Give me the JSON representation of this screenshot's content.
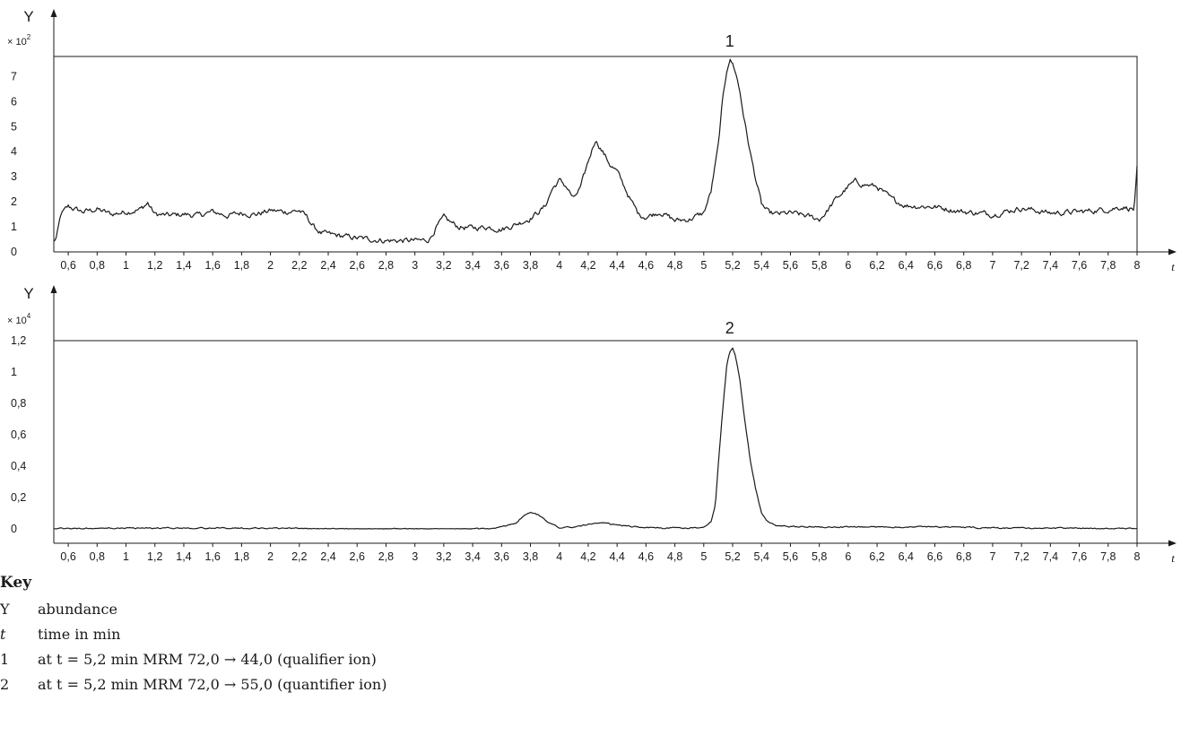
{
  "chart_data": [
    {
      "type": "line",
      "peak_label": "1",
      "ylabel": "Y",
      "xlabel": "t",
      "y_multiplier_base": "× 10",
      "y_multiplier_exp": "2",
      "ylim": [
        0,
        7.8
      ],
      "xlim": [
        0.5,
        8
      ],
      "yticks": [
        {
          "v": 0,
          "label": "0"
        },
        {
          "v": 1,
          "label": "1"
        },
        {
          "v": 2,
          "label": "2"
        },
        {
          "v": 3,
          "label": "3"
        },
        {
          "v": 4,
          "label": "4"
        },
        {
          "v": 5,
          "label": "5"
        },
        {
          "v": 6,
          "label": "6"
        },
        {
          "v": 7,
          "label": "7"
        }
      ],
      "series": [
        {
          "x": [
            0.5,
            0.52,
            0.55,
            0.6,
            0.7,
            0.8,
            0.9,
            1.0,
            1.1,
            1.15,
            1.2,
            1.3,
            1.4,
            1.5,
            1.6,
            1.7,
            1.8,
            1.9,
            2.0,
            2.1,
            2.2,
            2.25,
            2.3,
            2.35,
            2.4,
            2.6,
            2.8,
            2.9,
            3.0,
            3.05,
            3.1,
            3.15,
            3.2,
            3.3,
            3.4,
            3.5,
            3.6,
            3.7,
            3.8,
            3.9,
            3.95,
            4.0,
            4.05,
            4.1,
            4.15,
            4.2,
            4.25,
            4.3,
            4.35,
            4.4,
            4.45,
            4.5,
            4.55,
            4.6,
            4.7,
            4.8,
            4.9,
            5.0,
            5.05,
            5.1,
            5.13,
            5.16,
            5.18,
            5.2,
            5.22,
            5.25,
            5.28,
            5.32,
            5.36,
            5.4,
            5.45,
            5.5,
            5.6,
            5.7,
            5.8,
            5.85,
            5.9,
            6.0,
            6.05,
            6.1,
            6.2,
            6.3,
            6.4,
            6.6,
            6.8,
            7.0,
            7.2,
            7.4,
            7.6,
            7.8,
            7.9,
            7.98,
            8.0
          ],
          "y": [
            0.4,
            0.6,
            1.5,
            1.8,
            1.6,
            1.7,
            1.5,
            1.6,
            1.7,
            1.95,
            1.5,
            1.45,
            1.5,
            1.45,
            1.6,
            1.45,
            1.55,
            1.5,
            1.65,
            1.6,
            1.65,
            1.4,
            1.0,
            0.75,
            0.7,
            0.55,
            0.45,
            0.45,
            0.45,
            0.45,
            0.5,
            1.0,
            1.35,
            1.0,
            0.95,
            1.0,
            0.9,
            1.1,
            1.35,
            1.8,
            2.5,
            2.85,
            2.6,
            2.1,
            2.6,
            3.6,
            4.5,
            4.0,
            3.5,
            3.2,
            2.6,
            2.0,
            1.5,
            1.4,
            1.6,
            1.25,
            1.3,
            1.55,
            2.4,
            4.2,
            6.0,
            7.3,
            7.7,
            7.5,
            7.2,
            6.4,
            5.3,
            4.0,
            2.9,
            1.9,
            1.55,
            1.5,
            1.55,
            1.45,
            1.3,
            1.6,
            2.0,
            2.6,
            2.8,
            2.7,
            2.6,
            2.1,
            1.85,
            1.8,
            1.6,
            1.5,
            1.75,
            1.55,
            1.6,
            1.7,
            1.8,
            1.7,
            3.3
          ]
        }
      ]
    },
    {
      "type": "line",
      "peak_label": "2",
      "ylabel": "Y",
      "xlabel": "t",
      "y_multiplier_base": "× 10",
      "y_multiplier_exp": "4",
      "ylim": [
        0,
        1.2
      ],
      "xlim": [
        0.5,
        8
      ],
      "yticks": [
        {
          "v": 0,
          "label": "0"
        },
        {
          "v": 0.2,
          "label": "0,2"
        },
        {
          "v": 0.4,
          "label": "0,4"
        },
        {
          "v": 0.6,
          "label": "0,6"
        },
        {
          "v": 0.8,
          "label": "0,8"
        },
        {
          "v": 1.0,
          "label": "1"
        },
        {
          "v": 1.2,
          "label": "1,2"
        }
      ],
      "series": [
        {
          "x": [
            0.5,
            1.0,
            2.0,
            2.5,
            3.0,
            3.5,
            3.6,
            3.7,
            3.75,
            3.8,
            3.85,
            3.9,
            3.95,
            4.0,
            4.1,
            4.2,
            4.3,
            4.5,
            4.7,
            4.9,
            5.0,
            5.05,
            5.08,
            5.1,
            5.13,
            5.16,
            5.18,
            5.2,
            5.22,
            5.25,
            5.28,
            5.32,
            5.36,
            5.4,
            5.45,
            5.5,
            5.6,
            6.0,
            6.6,
            7.0,
            7.6,
            8.0
          ],
          "y": [
            0.0,
            0.005,
            0.005,
            0.0,
            0.0,
            0.0,
            0.01,
            0.04,
            0.08,
            0.105,
            0.09,
            0.06,
            0.03,
            0.01,
            0.01,
            0.03,
            0.035,
            0.015,
            0.005,
            0.005,
            0.01,
            0.05,
            0.15,
            0.4,
            0.75,
            1.05,
            1.13,
            1.15,
            1.1,
            0.95,
            0.72,
            0.45,
            0.25,
            0.1,
            0.04,
            0.02,
            0.015,
            0.01,
            0.015,
            0.005,
            0.005,
            0.0
          ]
        }
      ]
    }
  ],
  "x_ticks": [
    {
      "v": 0.6,
      "label": "0,6"
    },
    {
      "v": 0.8,
      "label": "0,8"
    },
    {
      "v": 1.0,
      "label": "1"
    },
    {
      "v": 1.2,
      "label": "1,2"
    },
    {
      "v": 1.4,
      "label": "1,4"
    },
    {
      "v": 1.6,
      "label": "1,6"
    },
    {
      "v": 1.8,
      "label": "1,8"
    },
    {
      "v": 2.0,
      "label": "2"
    },
    {
      "v": 2.2,
      "label": "2,2"
    },
    {
      "v": 2.4,
      "label": "2,4"
    },
    {
      "v": 2.6,
      "label": "2,6"
    },
    {
      "v": 2.8,
      "label": "2,8"
    },
    {
      "v": 3.0,
      "label": "3"
    },
    {
      "v": 3.2,
      "label": "3,2"
    },
    {
      "v": 3.4,
      "label": "3,4"
    },
    {
      "v": 3.6,
      "label": "3,6"
    },
    {
      "v": 3.8,
      "label": "3,8"
    },
    {
      "v": 4.0,
      "label": "4"
    },
    {
      "v": 4.2,
      "label": "4,2"
    },
    {
      "v": 4.4,
      "label": "4,4"
    },
    {
      "v": 4.6,
      "label": "4,6"
    },
    {
      "v": 4.8,
      "label": "4,8"
    },
    {
      "v": 5.0,
      "label": "5"
    },
    {
      "v": 5.2,
      "label": "5,2"
    },
    {
      "v": 5.4,
      "label": "5,4"
    },
    {
      "v": 5.6,
      "label": "5,6"
    },
    {
      "v": 5.8,
      "label": "5,8"
    },
    {
      "v": 6.0,
      "label": "6"
    },
    {
      "v": 6.2,
      "label": "6,2"
    },
    {
      "v": 6.4,
      "label": "6,4"
    },
    {
      "v": 6.6,
      "label": "6,6"
    },
    {
      "v": 6.8,
      "label": "6,8"
    },
    {
      "v": 7.0,
      "label": "7"
    },
    {
      "v": 7.2,
      "label": "7,2"
    },
    {
      "v": 7.4,
      "label": "7,4"
    },
    {
      "v": 7.6,
      "label": "7,6"
    },
    {
      "v": 7.8,
      "label": "7,8"
    },
    {
      "v": 8.0,
      "label": "8"
    }
  ],
  "key": {
    "title": "Key",
    "rows": [
      {
        "sym": "Y",
        "italic": false,
        "desc": "abundance"
      },
      {
        "sym": "t",
        "italic": true,
        "desc": "time in min"
      },
      {
        "sym": "1",
        "italic": false,
        "desc": "at t = 5,2 min MRM 72,0 → 44,0 (qualifier ion)"
      },
      {
        "sym": "2",
        "italic": false,
        "desc": "at t = 5,2 min MRM 72,0 → 55,0 (quantifier ion)"
      }
    ]
  }
}
